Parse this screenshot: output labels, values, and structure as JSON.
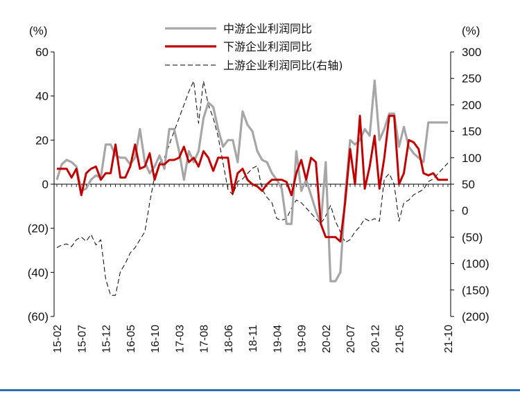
{
  "chart_data": {
    "type": "line",
    "left_unit": "(%)",
    "right_unit": "(%)",
    "y_left": {
      "min": -60,
      "max": 60,
      "ticks": [
        60,
        40,
        20,
        0,
        -20,
        -40,
        -60
      ],
      "tick_labels": [
        "60",
        "40",
        "20",
        "0",
        "(20)",
        "(40)",
        "(60)"
      ]
    },
    "y_right": {
      "min": -200,
      "max": 300,
      "ticks": [
        300,
        250,
        200,
        150,
        100,
        50,
        0,
        -50,
        -100,
        -150,
        -200
      ],
      "tick_labels": [
        "300",
        "250",
        "200",
        "150",
        "100",
        "50",
        "0",
        "(50)",
        "(100)",
        "(150)",
        "(200)"
      ]
    },
    "x_labels": [
      "15-02",
      "15-07",
      "15-12",
      "16-05",
      "16-10",
      "17-03",
      "17-08",
      "18-06",
      "18-11",
      "19-04",
      "19-09",
      "20-02",
      "20-07",
      "20-12",
      "21-05",
      "21-10"
    ],
    "x_label_index": [
      0,
      5,
      10,
      15,
      20,
      25,
      30,
      35,
      40,
      45,
      50,
      55,
      60,
      65,
      70,
      80
    ],
    "n_points": 81,
    "series": [
      {
        "name": "中游企业利润同比",
        "axis": "left",
        "color": "#a6a6a6",
        "style": "solid",
        "values": [
          2,
          9,
          11,
          10,
          8,
          -3,
          -2,
          2,
          4,
          3,
          18,
          18,
          13,
          12,
          12,
          9,
          12,
          25,
          10,
          5,
          8,
          13,
          7,
          25,
          25,
          15,
          2,
          15,
          10,
          15,
          30,
          37,
          35,
          25,
          17,
          20,
          20,
          10,
          33,
          27,
          24,
          15,
          11,
          10,
          5,
          2,
          -2,
          -18,
          -18,
          15,
          -3,
          2,
          -5,
          -12,
          -18,
          10,
          -44,
          -44,
          -40,
          -5,
          20,
          18,
          20,
          25,
          22,
          47,
          20,
          25,
          32,
          32,
          17,
          26,
          17,
          14,
          12,
          10,
          28,
          28,
          28,
          28,
          28
        ]
      },
      {
        "name": "下游企业利润同比",
        "axis": "left",
        "color": "#c00000",
        "style": "solid",
        "values": [
          7,
          7,
          7,
          3,
          7,
          -5,
          5,
          7,
          8,
          2,
          5,
          5,
          18,
          3,
          3,
          8,
          18,
          7,
          8,
          14,
          2,
          9,
          9,
          11,
          11,
          12,
          17,
          10,
          12,
          8,
          15,
          12,
          6,
          12,
          12,
          12,
          -4,
          5,
          7,
          2,
          0,
          -1,
          -3,
          0,
          2,
          2,
          2,
          1,
          -5,
          5,
          11,
          2,
          12,
          10,
          -18,
          -24,
          -24,
          -24,
          -26,
          -8,
          16,
          0,
          31,
          -2,
          8,
          22,
          -2,
          12,
          31,
          31,
          0,
          5,
          20,
          19,
          16,
          5,
          4,
          5,
          2,
          2,
          2
        ]
      },
      {
        "name": "上游企业利润同比(右轴)",
        "axis": "right",
        "color": "#000000",
        "style": "dashed",
        "values": [
          -70,
          -65,
          -63,
          -68,
          -55,
          -50,
          -58,
          -45,
          -65,
          -55,
          -130,
          -160,
          -160,
          -115,
          -100,
          -80,
          -70,
          -55,
          -40,
          15,
          65,
          90,
          100,
          125,
          150,
          175,
          200,
          225,
          245,
          165,
          245,
          200,
          175,
          140,
          90,
          40,
          30,
          55,
          60,
          70,
          80,
          85,
          40,
          25,
          15,
          -15,
          -18,
          -15,
          5,
          20,
          15,
          5,
          -5,
          -15,
          -25,
          -10,
          10,
          -20,
          -40,
          -60,
          -55,
          -40,
          -30,
          -15,
          -20,
          -15,
          -20,
          60,
          70,
          50,
          -20,
          15,
          20,
          30,
          35,
          40,
          55,
          60,
          70,
          80,
          90
        ]
      }
    ]
  }
}
